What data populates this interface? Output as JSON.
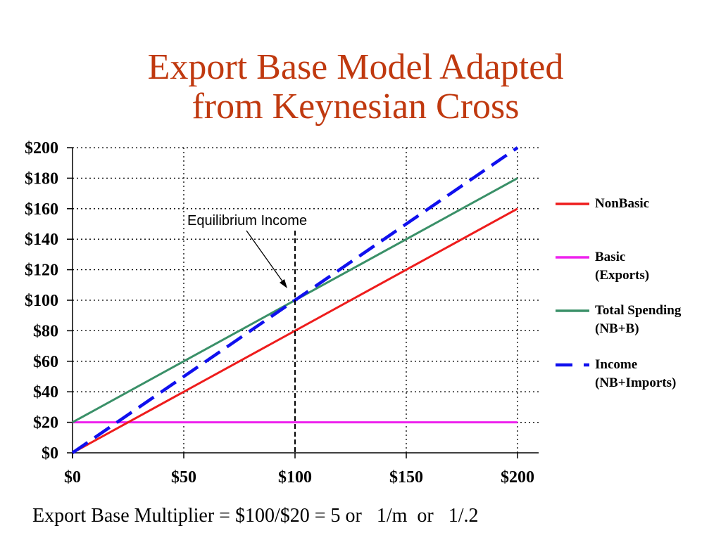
{
  "title": {
    "line1": "Export Base Model Adapted",
    "line2": "from Keynesian Cross"
  },
  "footer": {
    "text": "Export Base Multiplier = $100/$20 = 5 or   1/m  or   1/.2"
  },
  "annotation": {
    "text": "Equilibrium Income",
    "x_value": 100
  },
  "legend": {
    "items": [
      {
        "line1": "NonBasic",
        "line2": "",
        "color": "#ee1c1c",
        "style": "solid"
      },
      {
        "line1": "Basic",
        "line2": "(Exports)",
        "color": "#ee22ee",
        "style": "solid"
      },
      {
        "line1": "Total Spending",
        "line2": "(NB+B)",
        "color": "#3a9068",
        "style": "solid"
      },
      {
        "line1": "Income",
        "line2": "(NB+Imports)",
        "color": "#1010ee",
        "style": "dashed"
      }
    ]
  },
  "axes": {
    "y_ticks": [
      "$0",
      "$20",
      "$40",
      "$60",
      "$80",
      "$100",
      "$120",
      "$140",
      "$160",
      "$180",
      "$200"
    ],
    "x_ticks": [
      "$0",
      "$50",
      "$100",
      "$150",
      "$200"
    ]
  },
  "chart_data": {
    "type": "line",
    "title": "Export Base Model Adapted from Keynesian Cross",
    "xlabel": "",
    "ylabel": "",
    "xlim": [
      0,
      200
    ],
    "ylim": [
      0,
      200
    ],
    "grid": true,
    "legend_position": "right",
    "x": [
      0,
      200
    ],
    "series": [
      {
        "name": "NonBasic",
        "values": [
          0,
          160
        ],
        "color": "#ee1c1c",
        "style": "solid"
      },
      {
        "name": "Basic (Exports)",
        "values": [
          20,
          20
        ],
        "color": "#ee22ee",
        "style": "solid"
      },
      {
        "name": "Total Spending (NB+B)",
        "values": [
          20,
          180
        ],
        "color": "#3a9068",
        "style": "solid"
      },
      {
        "name": "Income (NB+Imports)",
        "values": [
          0,
          200
        ],
        "color": "#1010ee",
        "style": "dashed"
      }
    ],
    "annotations": [
      {
        "text": "Equilibrium Income",
        "x": 100,
        "y": 100,
        "type": "vertical dashed line with arrow"
      }
    ],
    "x_tick_labels": [
      "$0",
      "$50",
      "$100",
      "$150",
      "$200"
    ],
    "y_tick_labels": [
      "$0",
      "$20",
      "$40",
      "$60",
      "$80",
      "$100",
      "$120",
      "$140",
      "$160",
      "$180",
      "$200"
    ]
  }
}
